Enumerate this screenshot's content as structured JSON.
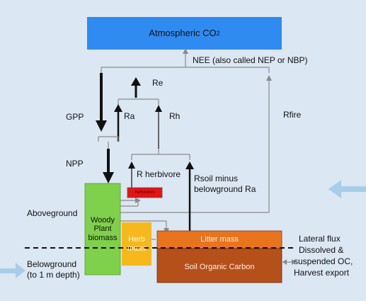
{
  "atmosphere": {
    "label": "Atmospheric CO",
    "sub": "2"
  },
  "labels": {
    "nee": "NEE (also called NEP or NBP)",
    "re": "Re",
    "gpp": "GPP",
    "ra": "Ra",
    "rh": "Rh",
    "rfire": "Rfire",
    "npp": "NPP",
    "r_herbivore": "R herbivore",
    "rsoil_line1": "Rsoil minus",
    "rsoil_line2": "belowground Ra",
    "aboveground": "Aboveground",
    "belowground_line1": "Belowground",
    "belowground_line2": "(to 1 m depth)",
    "lateral_line1": "Lateral flux",
    "lateral_line2": "Dissolved &",
    "lateral_line3": "suspended OC,",
    "lateral_line4": "Harvest export"
  },
  "boxes": {
    "woody_line1": "Woody",
    "woody_line2": "Plant",
    "woody_line3": "biomass",
    "herb_line1": "Herb",
    "herb_line2": "mass",
    "litter": "Litter mass",
    "soc": "Soil Organic Carbon",
    "herbivores": "herbivores"
  },
  "colors": {
    "background": "#dbe7f3",
    "atmosphere_fill": "#2f8bf0",
    "woody_fill": "#7fd04a",
    "herb_fill": "#f7b81c",
    "litter_fill": "#e9741e",
    "soc_fill": "#b5501a",
    "herbivore_fill": "#e41414",
    "side_arrows": "#a9cde8",
    "lines": "#9a9a9a"
  }
}
